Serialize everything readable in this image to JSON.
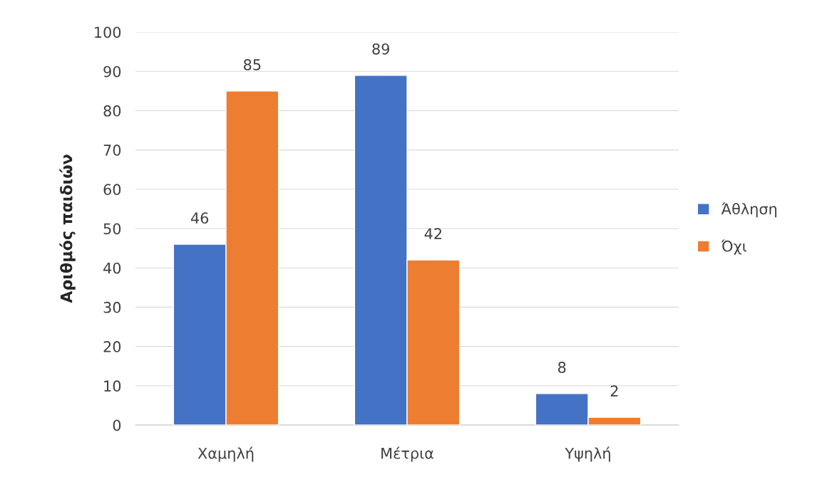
{
  "chart_data": {
    "type": "bar",
    "ylabel": "Αριθμός παιδιών",
    "categories": [
      "Χαμηλή",
      "Μέτρια",
      "Υψηλή"
    ],
    "series": [
      {
        "name": "Άθληση",
        "color": "#4472c4",
        "values": [
          46,
          89,
          8
        ]
      },
      {
        "name": "Όχι",
        "color": "#ed7d31",
        "values": [
          85,
          42,
          2
        ]
      }
    ],
    "ylim": [
      0,
      100
    ],
    "yticks": [
      0,
      10,
      20,
      30,
      40,
      50,
      60,
      70,
      80,
      90,
      100
    ],
    "grid": "y",
    "legend": "right",
    "data_labels": true
  }
}
